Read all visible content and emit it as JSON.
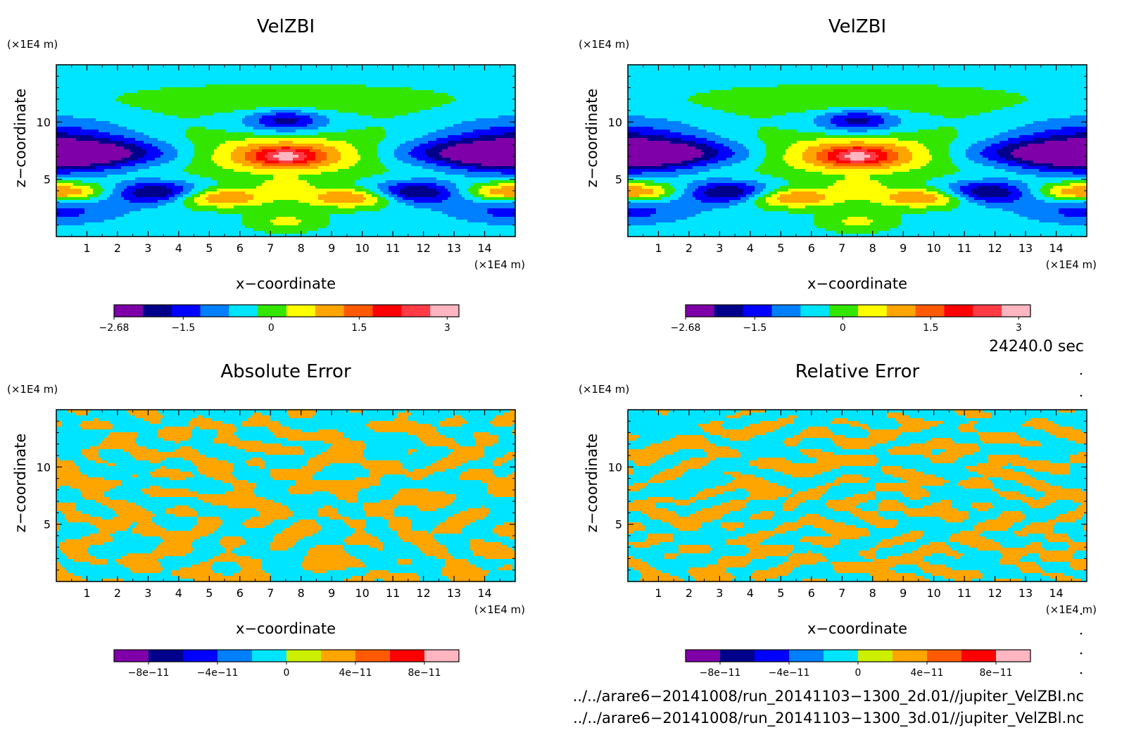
{
  "chart_data": [
    {
      "type": "heatmap",
      "panel": "top-left",
      "title": "VelZBI",
      "xlabel": "x−coordinate",
      "ylabel": "z−coordinate",
      "x_unit": "(×1E4 m)",
      "y_unit": "(×1E4 m)",
      "xlim": [
        0,
        15
      ],
      "ylim": [
        0,
        15
      ],
      "x_ticks": [
        "1",
        "2",
        "3",
        "4",
        "5",
        "6",
        "7",
        "8",
        "9",
        "10",
        "11",
        "12",
        "13",
        "14"
      ],
      "y_ticks": [
        "5",
        "10"
      ],
      "colorbar": {
        "colors": [
          "#7f00a8",
          "#00008b",
          "#0000ff",
          "#0080ff",
          "#00e5ff",
          "#33e600",
          "#ffff00",
          "#ffa500",
          "#ff5a00",
          "#ff0000",
          "#ff3c46",
          "#ffb6c1"
        ],
        "ticks": [
          "−2.68",
          "−1.5",
          "0",
          "1.5",
          "3"
        ],
        "tick_values": [
          -2.68,
          -1.5,
          0,
          1.5,
          3
        ],
        "range": [
          -2.68,
          3.2
        ]
      }
    },
    {
      "type": "heatmap",
      "panel": "top-right",
      "title": "VelZBI",
      "xlabel": "x−coordinate",
      "ylabel": "z−coordinate",
      "x_unit": "(×1E4 m)",
      "y_unit": "(×1E4 m)",
      "xlim": [
        0,
        15
      ],
      "ylim": [
        0,
        15
      ],
      "x_ticks": [
        "1",
        "2",
        "3",
        "4",
        "5",
        "6",
        "7",
        "8",
        "9",
        "10",
        "11",
        "12",
        "13",
        "14"
      ],
      "y_ticks": [
        "5",
        "10"
      ],
      "colorbar": {
        "colors": [
          "#7f00a8",
          "#00008b",
          "#0000ff",
          "#0080ff",
          "#00e5ff",
          "#33e600",
          "#ffff00",
          "#ffa500",
          "#ff5a00",
          "#ff0000",
          "#ff3c46",
          "#ffb6c1"
        ],
        "ticks": [
          "−2.68",
          "−1.5",
          "0",
          "1.5",
          "3"
        ],
        "tick_values": [
          -2.68,
          -1.5,
          0,
          1.5,
          3
        ],
        "range": [
          -2.68,
          3.2
        ]
      }
    },
    {
      "type": "heatmap",
      "panel": "bottom-left",
      "title": "Absolute Error",
      "xlabel": "x−coordinate",
      "ylabel": "z−coordinate",
      "x_unit": "(×1E4 m)",
      "y_unit": "(×1E4 m)",
      "xlim": [
        0,
        15
      ],
      "ylim": [
        0,
        15
      ],
      "x_ticks": [
        "1",
        "2",
        "3",
        "4",
        "5",
        "6",
        "7",
        "8",
        "9",
        "10",
        "11",
        "12",
        "13",
        "14"
      ],
      "y_ticks": [
        "5",
        "10"
      ],
      "colorbar": {
        "colors": [
          "#7f00a8",
          "#00008b",
          "#0000ff",
          "#0080ff",
          "#00e5ff",
          "#ccf000",
          "#ffa500",
          "#ff5a00",
          "#ff0000",
          "#ffb6c1"
        ],
        "ticks": [
          "−8e−11",
          "−4e−11",
          "0",
          "4e−11",
          "8e−11"
        ],
        "tick_values": [
          -8e-11,
          -4e-11,
          0,
          4e-11,
          8e-11
        ],
        "range": [
          -1e-10,
          1e-10
        ]
      }
    },
    {
      "type": "heatmap",
      "panel": "bottom-right",
      "title": "Relative Error",
      "xlabel": "x−coordinate",
      "ylabel": "z−coordinate",
      "x_unit": "(×1E4 m)",
      "y_unit": "(×1E4 m)",
      "xlim": [
        0,
        15
      ],
      "ylim": [
        0,
        15
      ],
      "x_ticks": [
        "1",
        "2",
        "3",
        "4",
        "5",
        "6",
        "7",
        "8",
        "9",
        "10",
        "11",
        "12",
        "13",
        "14"
      ],
      "y_ticks": [
        "5",
        "10"
      ],
      "colorbar": {
        "colors": [
          "#7f00a8",
          "#00008b",
          "#0000ff",
          "#0080ff",
          "#00e5ff",
          "#ccf000",
          "#ffa500",
          "#ff5a00",
          "#ff0000",
          "#ffb6c1"
        ],
        "ticks": [
          "−8e−11",
          "−4e−11",
          "0",
          "4e−11",
          "8e−11"
        ],
        "tick_values": [
          -8e-11,
          -4e-11,
          0,
          4e-11,
          8e-11
        ],
        "range": [
          -1e-10,
          1e-10
        ]
      }
    }
  ],
  "time_label": "24240.0 sec",
  "footer_lines": [
    "../../arare6−20141008/run_20141103−1300_2d.01//jupiter_VelZBI.nc",
    "../../arare6−20141008/run_20141103−1300_3d.01//jupiter_VelZBl.nc"
  ]
}
